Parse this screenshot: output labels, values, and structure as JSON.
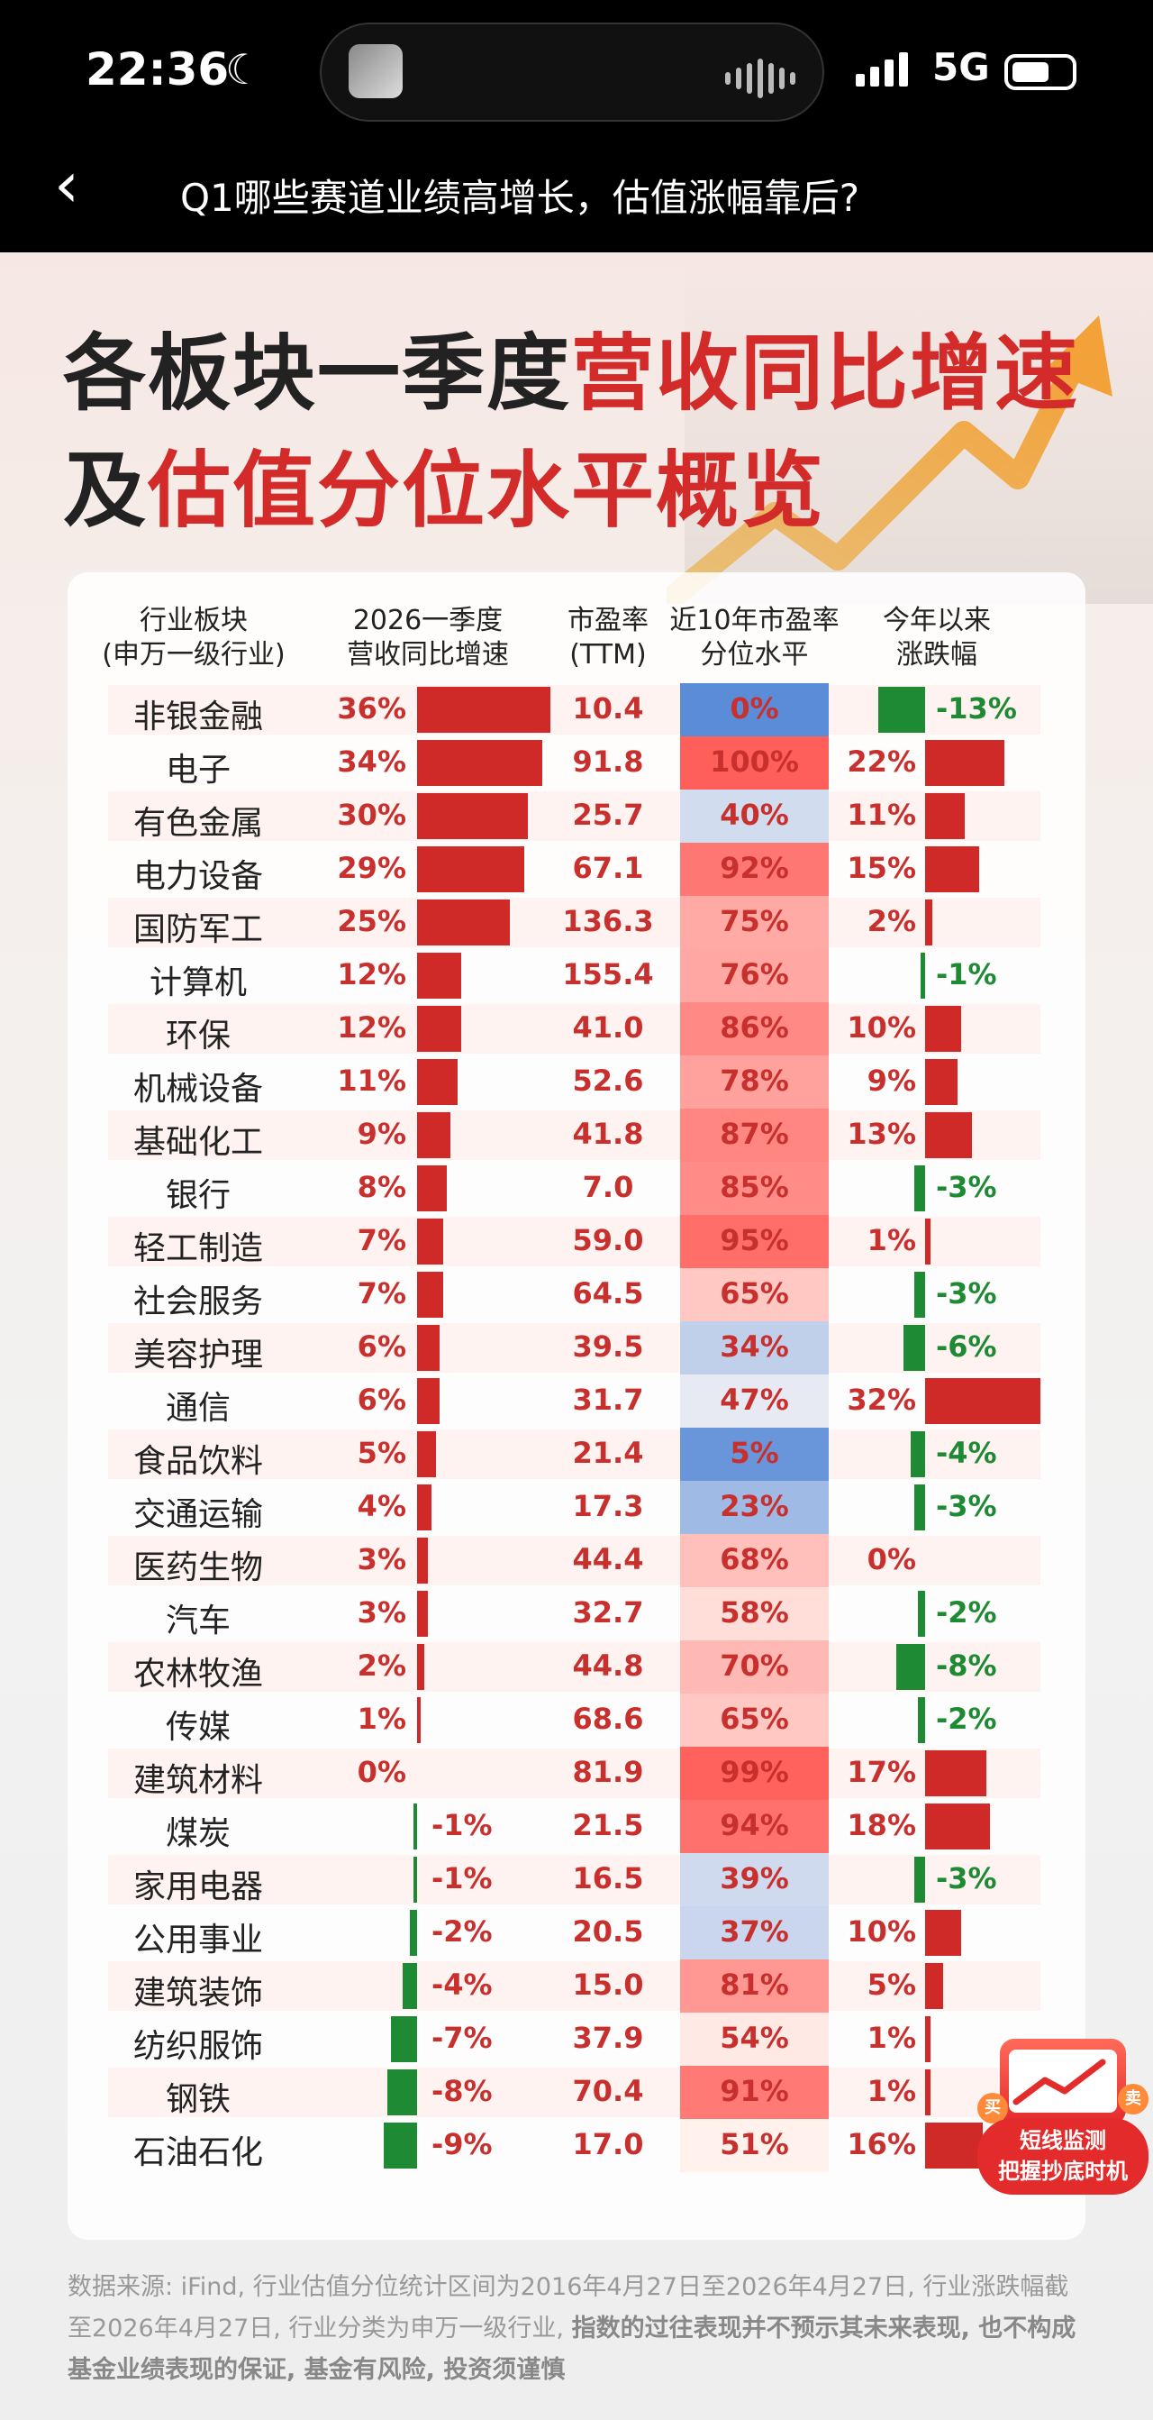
{
  "status": {
    "time": "22:36",
    "network": "5G"
  },
  "nav": {
    "title": "Q1哪些赛道业绩高增长，估值涨幅靠后?"
  },
  "poster": {
    "title_dark_1": "各板块一季度",
    "title_red_1": "营收同比增速",
    "title_dark_2": "及",
    "title_red_2": "估值分位水平概览"
  },
  "table": {
    "headers": {
      "sector": "行业板块",
      "sector_sub": "(申万一级行业)",
      "growth": "2026一季度",
      "growth_sub": "营收同比增速",
      "pe": "市盈率",
      "pe_sub": "(TTM)",
      "pct": "近10年市盈率",
      "pct_sub": "分位水平",
      "ytd": "今年以来",
      "ytd_sub": "涨跌幅"
    },
    "rows": [
      {
        "name": "非银金融",
        "growth": "36%",
        "g": 36,
        "pe": "10.4",
        "pct": "0%",
        "p": 0,
        "ytd": "-13%",
        "y": -13
      },
      {
        "name": "电子",
        "growth": "34%",
        "g": 34,
        "pe": "91.8",
        "pct": "100%",
        "p": 100,
        "ytd": "22%",
        "y": 22
      },
      {
        "name": "有色金属",
        "growth": "30%",
        "g": 30,
        "pe": "25.7",
        "pct": "40%",
        "p": 40,
        "ytd": "11%",
        "y": 11
      },
      {
        "name": "电力设备",
        "growth": "29%",
        "g": 29,
        "pe": "67.1",
        "pct": "92%",
        "p": 92,
        "ytd": "15%",
        "y": 15
      },
      {
        "name": "国防军工",
        "growth": "25%",
        "g": 25,
        "pe": "136.3",
        "pct": "75%",
        "p": 75,
        "ytd": "2%",
        "y": 2
      },
      {
        "name": "计算机",
        "growth": "12%",
        "g": 12,
        "pe": "155.4",
        "pct": "76%",
        "p": 76,
        "ytd": "-1%",
        "y": -1
      },
      {
        "name": "环保",
        "growth": "12%",
        "g": 12,
        "pe": "41.0",
        "pct": "86%",
        "p": 86,
        "ytd": "10%",
        "y": 10
      },
      {
        "name": "机械设备",
        "growth": "11%",
        "g": 11,
        "pe": "52.6",
        "pct": "78%",
        "p": 78,
        "ytd": "9%",
        "y": 9
      },
      {
        "name": "基础化工",
        "growth": "9%",
        "g": 9,
        "pe": "41.8",
        "pct": "87%",
        "p": 87,
        "ytd": "13%",
        "y": 13
      },
      {
        "name": "银行",
        "growth": "8%",
        "g": 8,
        "pe": "7.0",
        "pct": "85%",
        "p": 85,
        "ytd": "-3%",
        "y": -3
      },
      {
        "name": "轻工制造",
        "growth": "7%",
        "g": 7,
        "pe": "59.0",
        "pct": "95%",
        "p": 95,
        "ytd": "1%",
        "y": 1
      },
      {
        "name": "社会服务",
        "growth": "7%",
        "g": 7,
        "pe": "64.5",
        "pct": "65%",
        "p": 65,
        "ytd": "-3%",
        "y": -3
      },
      {
        "name": "美容护理",
        "growth": "6%",
        "g": 6,
        "pe": "39.5",
        "pct": "34%",
        "p": 34,
        "ytd": "-6%",
        "y": -6
      },
      {
        "name": "通信",
        "growth": "6%",
        "g": 6,
        "pe": "31.7",
        "pct": "47%",
        "p": 47,
        "ytd": "32%",
        "y": 32
      },
      {
        "name": "食品饮料",
        "growth": "5%",
        "g": 5,
        "pe": "21.4",
        "pct": "5%",
        "p": 5,
        "ytd": "-4%",
        "y": -4
      },
      {
        "name": "交通运输",
        "growth": "4%",
        "g": 4,
        "pe": "17.3",
        "pct": "23%",
        "p": 23,
        "ytd": "-3%",
        "y": -3
      },
      {
        "name": "医药生物",
        "growth": "3%",
        "g": 3,
        "pe": "44.4",
        "pct": "68%",
        "p": 68,
        "ytd": "0%",
        "y": 0
      },
      {
        "name": "汽车",
        "growth": "3%",
        "g": 3,
        "pe": "32.7",
        "pct": "58%",
        "p": 58,
        "ytd": "-2%",
        "y": -2
      },
      {
        "name": "农林牧渔",
        "growth": "2%",
        "g": 2,
        "pe": "44.8",
        "pct": "70%",
        "p": 70,
        "ytd": "-8%",
        "y": -8
      },
      {
        "name": "传媒",
        "growth": "1%",
        "g": 1,
        "pe": "68.6",
        "pct": "65%",
        "p": 65,
        "ytd": "-2%",
        "y": -2
      },
      {
        "name": "建筑材料",
        "growth": "0%",
        "g": 0,
        "pe": "81.9",
        "pct": "99%",
        "p": 99,
        "ytd": "17%",
        "y": 17
      },
      {
        "name": "煤炭",
        "growth": "-1%",
        "g": -1,
        "pe": "21.5",
        "pct": "94%",
        "p": 94,
        "ytd": "18%",
        "y": 18
      },
      {
        "name": "家用电器",
        "growth": "-1%",
        "g": -1,
        "pe": "16.5",
        "pct": "39%",
        "p": 39,
        "ytd": "-3%",
        "y": -3
      },
      {
        "name": "公用事业",
        "growth": "-2%",
        "g": -2,
        "pe": "20.5",
        "pct": "37%",
        "p": 37,
        "ytd": "10%",
        "y": 10
      },
      {
        "name": "建筑装饰",
        "growth": "-4%",
        "g": -4,
        "pe": "15.0",
        "pct": "81%",
        "p": 81,
        "ytd": "5%",
        "y": 5
      },
      {
        "name": "纺织服饰",
        "growth": "-7%",
        "g": -7,
        "pe": "37.9",
        "pct": "54%",
        "p": 54,
        "ytd": "1%",
        "y": 1
      },
      {
        "name": "钢铁",
        "growth": "-8%",
        "g": -8,
        "pe": "70.4",
        "pct": "91%",
        "p": 91,
        "ytd": "1%",
        "y": 1
      },
      {
        "name": "石油石化",
        "growth": "-9%",
        "g": -9,
        "pe": "17.0",
        "pct": "51%",
        "p": 51,
        "ytd": "16%",
        "y": 16
      }
    ]
  },
  "footnote": {
    "normal": "数据来源: iFind, 行业估值分位统计区间为2016年4月27日至2026年4月27日, 行业涨跌幅截至2026年4月27日, 行业分类为申万一级行业, ",
    "bold": "指数的过往表现并不预示其未来表现, 也不构成基金业绩表现的保证, 基金有风险, 投资须谨慎"
  },
  "widget": {
    "line1": "短线监测",
    "line2": "把握抄底时机",
    "tag_buy": "买",
    "tag_sell": "卖"
  },
  "colors": {
    "red": "#c8302e",
    "bar_red": "#d02a28",
    "bar_green": "#1e8a33",
    "blue": "#5b8fd6",
    "pink": "#ef6a6a"
  },
  "icons": [
    "moon-icon",
    "back-chevron-icon",
    "signal-icon",
    "battery-icon",
    "chart-widget-icon"
  ]
}
